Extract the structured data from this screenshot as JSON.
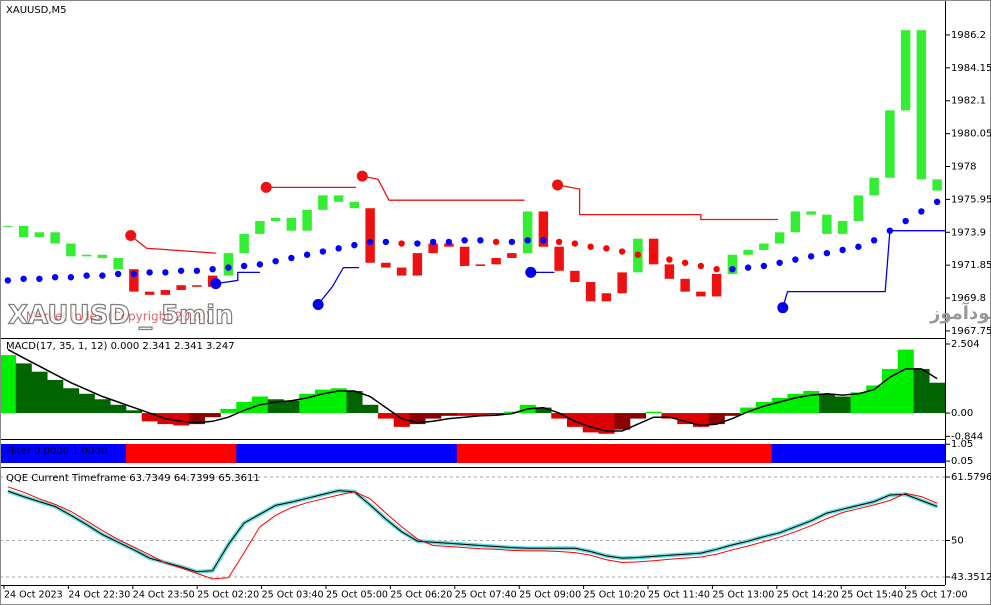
{
  "title": "XAUUSD,M5",
  "watermark": "XAUUSD _ 5min",
  "site_note": "انتشار در سایت سودآموز",
  "indicator_note": "Market Index (Copyright 2010)",
  "x_labels": [
    "24 Oct 2023",
    "24 Oct 22:30",
    "24 Oct 23:50",
    "25 Oct 02:20",
    "25 Oct 03:40",
    "25 Oct 05:00",
    "25 Oct 06:20",
    "25 Oct 07:40",
    "25 Oct 09:00",
    "25 Oct 10:20",
    "25 Oct 11:40",
    "25 Oct 13:00",
    "25 Oct 14:20",
    "25 Oct 15:40",
    "25 Oct 17:00"
  ],
  "price": {
    "type": "candles",
    "closes": [
      1974.3,
      1973.6,
      1973.9,
      1973.2,
      1972.4,
      1972.5,
      1972.3,
      1971.6,
      1970.2,
      1970.0,
      1970.3,
      1970.6,
      1970.5,
      1971.2,
      1972.6,
      1973.8,
      1974.6,
      1974.8,
      1974.0,
      1975.3,
      1976.2,
      1975.8,
      1975.4,
      1972.0,
      1971.7,
      1971.2,
      1972.6,
      1973.2,
      1973.0,
      1971.8,
      1971.9,
      1972.3,
      1972.6,
      1975.2,
      1973.0,
      1971.5,
      1970.8,
      1969.6,
      1970.1,
      1971.4,
      1973.5,
      1971.9,
      1971.0,
      1970.2,
      1969.9,
      1971.3,
      1972.5,
      1972.8,
      1973.2,
      1973.9,
      1975.2,
      1975.0,
      1973.8,
      1974.6,
      1976.2,
      1977.3,
      1981.5,
      1986.5,
      1977.2,
      1976.5
    ],
    "ma": [
      1970.9,
      1971.0,
      1971.0,
      1971.1,
      1971.1,
      1971.2,
      1971.2,
      1971.3,
      1971.3,
      1971.4,
      1971.4,
      1971.5,
      1971.5,
      1971.6,
      1971.7,
      1971.8,
      1971.9,
      1972.1,
      1972.3,
      1972.5,
      1972.7,
      1972.9,
      1973.1,
      1973.3,
      1973.3,
      1973.2,
      1973.2,
      1973.3,
      1973.3,
      1973.4,
      1973.4,
      1973.3,
      1973.3,
      1973.4,
      1973.4,
      1973.3,
      1973.2,
      1973.0,
      1972.9,
      1972.7,
      1972.5,
      1972.4,
      1972.2,
      1972.0,
      1971.8,
      1971.6,
      1971.6,
      1971.7,
      1971.8,
      1972.0,
      1972.2,
      1972.4,
      1972.6,
      1972.8,
      1973.0,
      1973.4,
      1974.0,
      1974.6,
      1975.2,
      1975.8
    ],
    "up_color": "#33ee33",
    "down_color": "#ee1111",
    "ma_up_color": "#0000ff",
    "ma_down_color": "#ff0000",
    "stops": [
      {
        "color": "#ee1111",
        "x": [
          7.8,
          8.8,
          13.2
        ],
        "y": [
          1973.7,
          1972.9,
          1972.6
        ]
      },
      {
        "color": "#ee1111",
        "x": [
          16.4,
          22.1
        ],
        "y": [
          1976.7,
          1976.7
        ]
      },
      {
        "color": "#ee1111",
        "x": [
          22.5,
          23.5,
          24.2,
          32.8
        ],
        "y": [
          1977.4,
          1977.2,
          1975.9,
          1975.9
        ]
      },
      {
        "color": "#ee1111",
        "x": [
          34.9,
          36.3,
          36.3,
          44.0,
          44.0,
          48.9
        ],
        "y": [
          1976.85,
          1976.6,
          1975.0,
          1975.0,
          1974.7,
          1974.7
        ]
      },
      {
        "color": "#0000ee",
        "x": [
          13.2,
          14.6,
          14.6,
          16.0
        ],
        "y": [
          1970.7,
          1970.9,
          1971.4,
          1971.4
        ]
      },
      {
        "color": "#0000ee",
        "x": [
          19.7,
          20.6,
          21.3,
          22.3
        ],
        "y": [
          1969.4,
          1970.5,
          1971.7,
          1971.7
        ]
      },
      {
        "color": "#0000ee",
        "x": [
          33.2,
          34.7
        ],
        "y": [
          1971.4,
          1971.4
        ]
      },
      {
        "color": "#0000ee",
        "x": [
          49.2,
          49.5,
          55.7,
          56.0,
          59.5
        ],
        "y": [
          1969.2,
          1970.2,
          1970.2,
          1974.0,
          1974.0
        ]
      }
    ],
    "ylim": [
      1967.31,
      1988.38
    ],
    "yticks": [
      1967.75,
      1969.8,
      1971.85,
      1973.9,
      1975.95,
      1978.0,
      1980.05,
      1982.1,
      1984.15,
      1986.2
    ]
  },
  "macd": {
    "type": "histogram",
    "title": "MACD(17, 35, 1, 12) 0.000 2.341 2.341 3.247",
    "values": [
      2.1,
      1.8,
      1.5,
      1.2,
      0.9,
      0.7,
      0.5,
      0.3,
      0.1,
      -0.3,
      -0.4,
      -0.45,
      -0.4,
      -0.15,
      0.15,
      0.4,
      0.6,
      0.5,
      0.45,
      0.7,
      0.85,
      0.9,
      0.8,
      0.3,
      -0.2,
      -0.5,
      -0.4,
      -0.2,
      -0.1,
      -0.1,
      -0.1,
      -0.05,
      0.05,
      0.3,
      0.2,
      -0.2,
      -0.5,
      -0.7,
      -0.75,
      -0.6,
      -0.2,
      0.05,
      -0.2,
      -0.4,
      -0.5,
      -0.4,
      -0.1,
      0.2,
      0.4,
      0.55,
      0.7,
      0.8,
      0.7,
      0.6,
      0.75,
      1.0,
      1.6,
      2.3,
      1.6,
      1.1
    ],
    "signal": [
      2.3,
      2.0,
      1.7,
      1.4,
      1.1,
      0.85,
      0.6,
      0.4,
      0.2,
      0.0,
      -0.2,
      -0.3,
      -0.35,
      -0.3,
      -0.15,
      0.1,
      0.3,
      0.4,
      0.45,
      0.55,
      0.7,
      0.8,
      0.8,
      0.6,
      0.2,
      -0.2,
      -0.35,
      -0.3,
      -0.2,
      -0.15,
      -0.1,
      -0.08,
      -0.02,
      0.15,
      0.2,
      0.0,
      -0.3,
      -0.5,
      -0.65,
      -0.65,
      -0.4,
      -0.15,
      -0.15,
      -0.3,
      -0.45,
      -0.4,
      -0.2,
      0.05,
      0.25,
      0.4,
      0.55,
      0.65,
      0.7,
      0.65,
      0.7,
      0.85,
      1.3,
      1.6,
      1.6,
      1.25
    ],
    "colors": {
      "up_rising": "#00ee00",
      "up_falling": "#006400",
      "down_falling": "#dd0000",
      "down_rising": "#8b0000"
    },
    "signal_color": "#000000",
    "ylim": [
      -0.94,
      2.685
    ],
    "yticks": [
      -0.844,
      {
        "value": 0,
        "label": "0.00"
      },
      2.504
    ]
  },
  "filter": {
    "type": "state",
    "title": "Filter 0.0000 1.0000",
    "values": [
      1,
      1,
      1,
      1,
      1,
      1,
      1,
      1,
      0,
      0,
      0,
      0,
      0,
      0,
      0,
      1,
      1,
      1,
      1,
      1,
      1,
      1,
      1,
      1,
      1,
      1,
      1,
      1,
      1,
      0,
      0,
      0,
      0,
      0,
      0,
      0,
      0,
      0,
      0,
      0,
      0,
      0,
      0,
      0,
      0,
      0,
      0,
      0,
      0,
      1,
      1,
      1,
      1,
      1,
      1,
      1,
      1,
      1,
      1,
      1
    ],
    "on_color": "#0000ff",
    "off_color": "#ff0000",
    "ylim": [
      -0.3,
      1.3
    ],
    "yticks": [
      0.05,
      1.05
    ]
  },
  "qqe": {
    "type": "line",
    "title": "QQE Current Timeframe 63.7349 64.7399 65.3611",
    "series": [
      {
        "color": "#000000",
        "values": [
          59.0,
          58.0,
          57.1,
          56.2,
          54.6,
          52.9,
          51.1,
          49.7,
          48.3,
          46.8,
          46.0,
          45.2,
          44.3,
          44.5,
          49.3,
          53.2,
          54.8,
          56.4,
          57.0,
          57.7,
          58.4,
          59.1,
          58.9,
          56.5,
          53.9,
          51.6,
          49.9,
          49.7,
          49.5,
          49.3,
          49.1,
          48.9,
          48.7,
          48.6,
          48.6,
          48.6,
          48.6,
          48.0,
          47.2,
          46.8,
          46.9,
          47.1,
          47.3,
          47.5,
          47.7,
          48.4,
          49.2,
          49.9,
          50.7,
          51.4,
          52.5,
          53.6,
          55.0,
          55.7,
          56.4,
          57.1,
          58.3,
          58.4,
          57.3,
          56.2
        ]
      },
      {
        "color": "#ff0000",
        "values": [
          59.8,
          58.8,
          57.6,
          56.6,
          55.3,
          53.6,
          51.8,
          50.2,
          48.8,
          47.4,
          45.9,
          45.0,
          44.0,
          43.0,
          43.2,
          47.8,
          52.5,
          54.6,
          56.0,
          56.9,
          57.6,
          58.3,
          58.9,
          57.6,
          55.0,
          52.5,
          50.3,
          49.1,
          48.9,
          48.7,
          48.5,
          48.4,
          48.2,
          48.1,
          48.1,
          48.0,
          47.8,
          47.3,
          46.5,
          46.0,
          46.1,
          46.3,
          46.6,
          46.8,
          47.0,
          47.5,
          48.3,
          49.0,
          49.8,
          50.6,
          51.6,
          52.7,
          54.0,
          55.1,
          55.8,
          56.5,
          57.3,
          58.6,
          58.0,
          56.8
        ]
      }
    ],
    "glow_color": "#66dddd",
    "ylim": [
      41.89,
      63.22
    ],
    "yticks": [
      43.3512,
      50,
      61.5796
    ],
    "grid": true
  }
}
